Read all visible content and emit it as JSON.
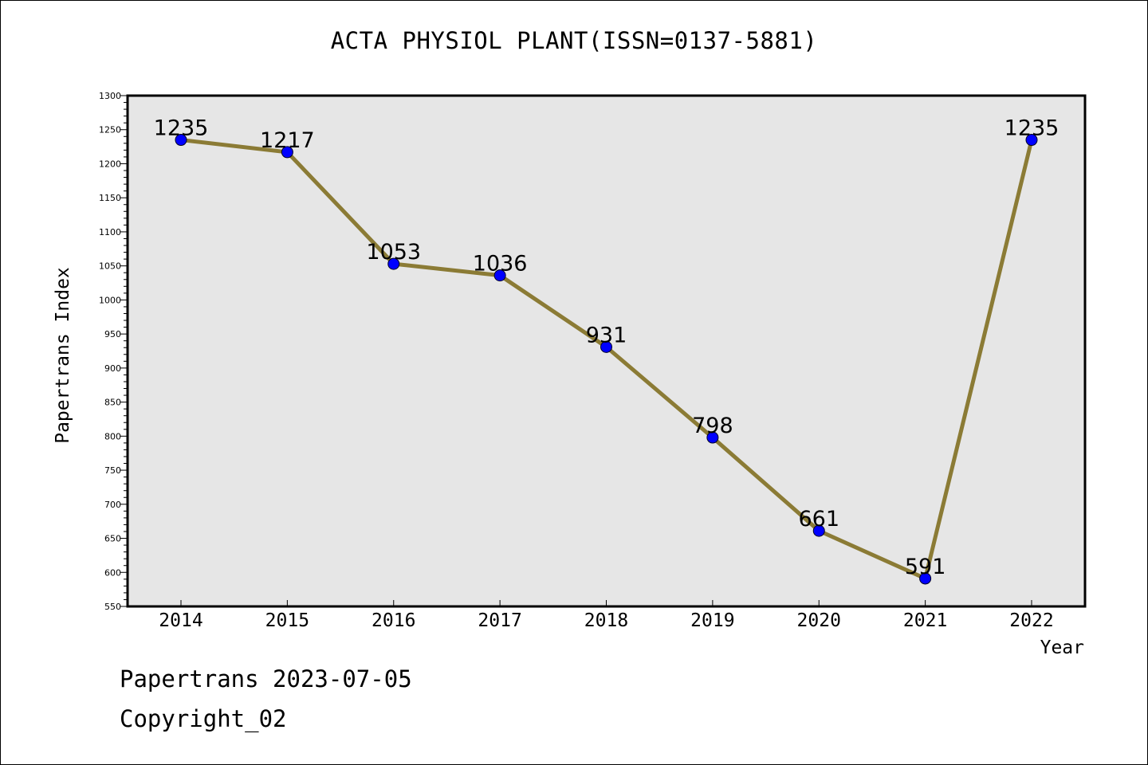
{
  "chart_data": {
    "type": "line",
    "title": "ACTA PHYSIOL PLANT(ISSN=0137-5881)",
    "xlabel": "Year",
    "ylabel": "Papertrans Index",
    "categories": [
      "2014",
      "2015",
      "2016",
      "2017",
      "2018",
      "2019",
      "2020",
      "2021",
      "2022"
    ],
    "series": [
      {
        "values": [
          1235,
          1217,
          1053,
          1036,
          931,
          798,
          661,
          591,
          1235
        ],
        "line_color": "#8b7b35",
        "marker_color": "#0000ff"
      }
    ],
    "data_labels": [
      "1235",
      "1217",
      "1053",
      "1036",
      "931",
      "798",
      "661",
      "591",
      "1235"
    ],
    "ylim": [
      550,
      1300
    ],
    "yticks": [
      "550",
      "600",
      "650",
      "700",
      "750",
      "800",
      "850",
      "900",
      "950",
      "1000",
      "1050",
      "1100",
      "1150",
      "1200",
      "1250",
      "1300"
    ],
    "plot_background": "#e6e6e6",
    "grid": false
  },
  "footer": {
    "date_text": "Papertrans 2023-07-05",
    "copyright_text": "Copyright_02"
  }
}
